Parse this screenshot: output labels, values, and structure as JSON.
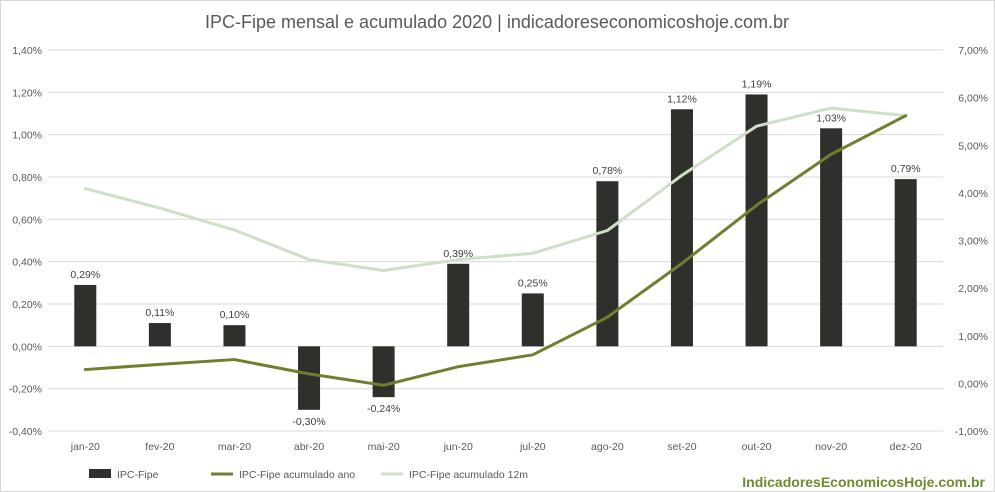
{
  "chart_data": {
    "type": "bar",
    "title": "IPC-Fipe mensal e acumulado 2020 | indicadoreseconomicoshoje.com.br",
    "categories": [
      "jan-20",
      "fev-20",
      "mar-20",
      "abr-20",
      "mai-20",
      "jun-20",
      "jul-20",
      "ago-20",
      "set-20",
      "out-20",
      "nov-20",
      "dez-20"
    ],
    "y_left": {
      "ylim": [
        -0.4,
        1.4
      ],
      "ticks": [
        "-0,40%",
        "-0,20%",
        "0,00%",
        "0,20%",
        "0,40%",
        "0,60%",
        "0,80%",
        "1,00%",
        "1,20%",
        "1,40%"
      ]
    },
    "y_right": {
      "ylim": [
        -1.0,
        7.0
      ],
      "ticks": [
        "-1,00%",
        "0,00%",
        "1,00%",
        "2,00%",
        "3,00%",
        "4,00%",
        "5,00%",
        "6,00%",
        "7,00%"
      ]
    },
    "series": [
      {
        "name": "IPC-Fipe",
        "type": "bar",
        "axis": "left",
        "color": "#2f302b",
        "values": [
          0.29,
          0.11,
          0.1,
          -0.3,
          -0.24,
          0.39,
          0.25,
          0.78,
          1.12,
          1.19,
          1.03,
          0.79
        ],
        "labels": [
          "0,29%",
          "0,11%",
          "0,10%",
          "-0,30%",
          "-0,24%",
          "0,39%",
          "0,25%",
          "0,78%",
          "1,12%",
          "1,19%",
          "1,03%",
          "0,79%"
        ]
      },
      {
        "name": "IPC-Fipe acumulado ano",
        "type": "line",
        "axis": "right",
        "color": "#6e8030",
        "values": [
          0.29,
          0.4,
          0.5,
          0.2,
          -0.04,
          0.35,
          0.6,
          1.39,
          2.52,
          3.74,
          4.81,
          5.62
        ]
      },
      {
        "name": "IPC-Fipe acumulado 12m",
        "type": "line",
        "axis": "right",
        "color": "#cfdfc8",
        "values": [
          4.09,
          3.68,
          3.22,
          2.6,
          2.37,
          2.6,
          2.73,
          3.21,
          4.37,
          5.4,
          5.78,
          5.62
        ]
      }
    ],
    "legend_position": "bottom-left",
    "gridlines": true
  },
  "watermark": "IndicadoresEconomicosHoje.com.br"
}
